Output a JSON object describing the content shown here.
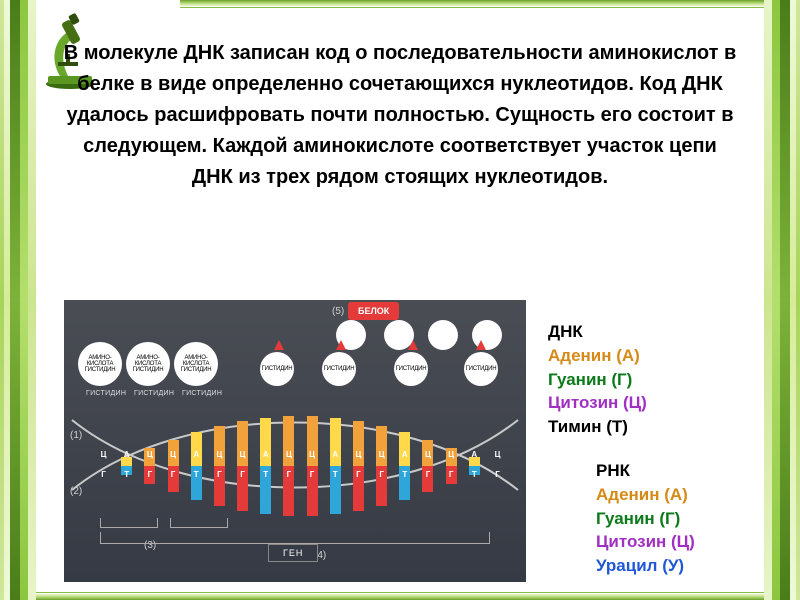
{
  "heading": "В молекуле ДНК записан код о последовательности аминокислот в белке в виде определенно сочетающихся нуклеотидов. Код ДНК удалось расшифровать почти полностью. Сущность его состоит в следующем. Каждой аминокислоте соответствует участок цепи ДНК из трех рядом стоящих нуклеотидов.",
  "dna": {
    "title": "ДНК",
    "adenine": "Аденин (А)",
    "guanine": "Гуанин (Г)",
    "cytosine": "Цитозин (Ц)",
    "thymine": "Тимин (Т)"
  },
  "rna": {
    "title": "РНК",
    "adenine": "Аденин (А)",
    "guanine": "Гуанин (Г)",
    "cytosine": "Цитозин (Ц)",
    "uracil": "Урацил (У)"
  },
  "diagram": {
    "protein_label": "БЕЛОК",
    "gene_label": "ГЕН",
    "amino_acid_histidine": "АМИНО-\nКИСЛОТА\nГИСТИДИН",
    "histidine": "ГИСТИДИН",
    "label_1": "(1)",
    "label_2": "(2)",
    "label_3": "(3)",
    "label_4": "(4)",
    "label_5": "(5)",
    "colors": {
      "bg_top": "#4a4d54",
      "bg_bot": "#353a44",
      "red": "#e43b3a",
      "orange": "#f2a23a",
      "yellow": "#ffd94a",
      "blue": "#2ea6d9"
    },
    "sequence_top": [
      "Ц",
      "А",
      "Ц",
      "Ц",
      "А",
      "Ц",
      "Ц",
      "А",
      "Ц",
      "Ц",
      "А",
      "Ц",
      "Ц",
      "А",
      "Ц",
      "Ц",
      "А",
      "Ц"
    ],
    "sequence_bottom": [
      "Г",
      "Т",
      "Г",
      "Г",
      "Т",
      "Г",
      "Г",
      "Т",
      "Г",
      "Г",
      "Т",
      "Г",
      "Г",
      "Т",
      "Г",
      "Г",
      "Т",
      "Г"
    ]
  }
}
